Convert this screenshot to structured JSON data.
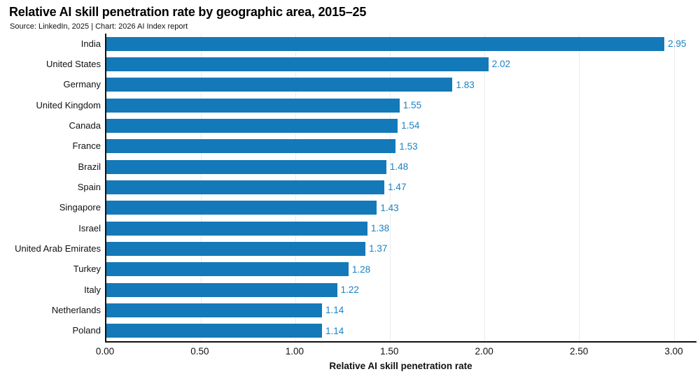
{
  "meta": {
    "source_line": "Source: LinkedIn, 2025 | Chart: 2026 AI Index report"
  },
  "colors": {
    "bar": "#1479b8",
    "value_label": "#1b82c4",
    "axis": "#111111",
    "grid": "#ececec",
    "background": "#ffffff"
  },
  "chart_data": {
    "type": "bar",
    "orientation": "horizontal",
    "title": "Relative AI skill penetration rate by geographic area, 2015–25",
    "categories": [
      "India",
      "United States",
      "Germany",
      "United Kingdom",
      "Canada",
      "France",
      "Brazil",
      "Spain",
      "Singapore",
      "Israel",
      "United Arab Emirates",
      "Turkey",
      "Italy",
      "Netherlands",
      "Poland"
    ],
    "values": [
      2.95,
      2.02,
      1.83,
      1.55,
      1.54,
      1.53,
      1.48,
      1.47,
      1.43,
      1.38,
      1.37,
      1.28,
      1.22,
      1.14,
      1.14
    ],
    "value_labels": [
      "2.95",
      "2.02",
      "1.83",
      "1.55",
      "1.54",
      "1.53",
      "1.48",
      "1.47",
      "1.43",
      "1.38",
      "1.37",
      "1.28",
      "1.22",
      "1.14",
      "1.14"
    ],
    "xlabel": "Relative AI skill penetration rate",
    "ylabel": "",
    "xlim": [
      0,
      3.12
    ],
    "xticks": [
      {
        "value": 0.0,
        "label": "0.00"
      },
      {
        "value": 0.5,
        "label": "0.50"
      },
      {
        "value": 1.0,
        "label": "1.00"
      },
      {
        "value": 1.5,
        "label": "1.50"
      },
      {
        "value": 2.0,
        "label": "2.00"
      },
      {
        "value": 2.5,
        "label": "2.50"
      },
      {
        "value": 3.0,
        "label": "3.00"
      }
    ],
    "grid": "vertical",
    "legend": "none"
  }
}
